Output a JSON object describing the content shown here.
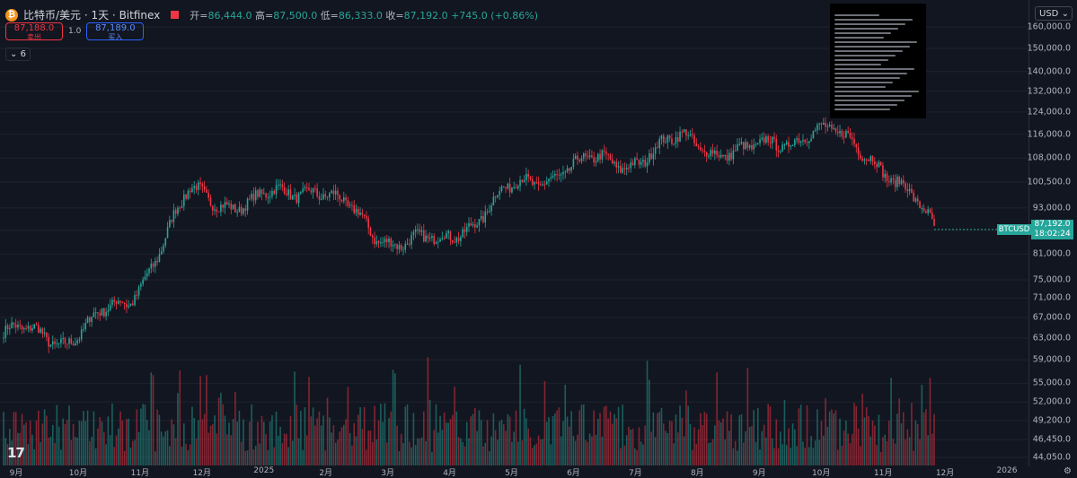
{
  "header": {
    "coin_icon": "bitcoin-icon",
    "title": "比特币/美元 · 1天 · Bitfinex",
    "ohlc": {
      "o_label": "开=",
      "o": "86,444.0",
      "h_label": "高=",
      "h": "87,500.0",
      "l_label": "低=",
      "l": "86,333.0",
      "c_label": "收=",
      "c": "87,192.0",
      "change": "+745.0 (+0.86%)"
    },
    "sell_price": "87,188.0",
    "sell_label": "卖出",
    "spread": "1.0",
    "buy_price": "87,189.0",
    "buy_label": "买入",
    "indicators_count": "6"
  },
  "axis": {
    "currency": "USD",
    "price_ticks": [
      "160,000.0",
      "150,000.0",
      "140,000.0",
      "132,000.0",
      "124,000.0",
      "116,000.0",
      "108,000.0",
      "100,500.0",
      "93,000.0",
      "87,000.0",
      "81,000.0",
      "75,000.0",
      "71,000.0",
      "67,000.0",
      "63,000.0",
      "59,000.0",
      "55,000.0",
      "52,000.0",
      "49,200.0",
      "46,450.0",
      "44,050.0"
    ],
    "symbol_tag": "BTCUSD",
    "last_price": "87,192.0",
    "countdown": "18:02:24",
    "time_labels": [
      "9月",
      "10月",
      "11月",
      "12月",
      "2025",
      "2月",
      "3月",
      "4月",
      "5月",
      "6月",
      "7月",
      "8月",
      "9月",
      "10月",
      "11月",
      "12月",
      "2026"
    ]
  },
  "colors": {
    "up": "#26a69a",
    "down": "#f23645",
    "background": "#121620"
  },
  "chart_data": {
    "type": "candlestick",
    "scale": "log",
    "symbol": "BTCUSD",
    "interval": "1D",
    "ylim": [
      44050,
      160000
    ],
    "x_range": [
      "2024-09",
      "2025-12"
    ],
    "approx_closes_by_month_start": [
      {
        "date": "2024-09-01",
        "close": 64000
      },
      {
        "date": "2024-10-01",
        "close": 63000
      },
      {
        "date": "2024-11-01",
        "close": 70000
      },
      {
        "date": "2024-12-01",
        "close": 97000
      },
      {
        "date": "2025-01-01",
        "close": 94000
      },
      {
        "date": "2025-02-01",
        "close": 100000
      },
      {
        "date": "2025-03-01",
        "close": 86000
      },
      {
        "date": "2025-04-01",
        "close": 83000
      },
      {
        "date": "2025-05-01",
        "close": 96000
      },
      {
        "date": "2025-06-01",
        "close": 105000
      },
      {
        "date": "2025-07-01",
        "close": 107000
      },
      {
        "date": "2025-08-01",
        "close": 114000
      },
      {
        "date": "2025-09-01",
        "close": 109000
      },
      {
        "date": "2025-10-01",
        "close": 118000
      },
      {
        "date": "2025-11-01",
        "close": 110000
      },
      {
        "date": "2025-12-01",
        "close": 87192
      }
    ],
    "volume_shown": true
  }
}
